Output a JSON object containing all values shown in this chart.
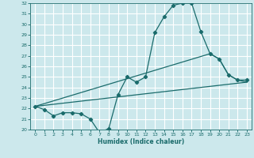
{
  "xlabel": "Humidex (Indice chaleur)",
  "bg_color": "#cce8ec",
  "grid_color": "#ffffff",
  "line_color": "#1a6b6b",
  "xlim": [
    -0.5,
    23.5
  ],
  "ylim": [
    20,
    32
  ],
  "xticks": [
    0,
    1,
    2,
    3,
    4,
    5,
    6,
    7,
    8,
    9,
    10,
    11,
    12,
    13,
    14,
    15,
    16,
    17,
    18,
    19,
    20,
    21,
    22,
    23
  ],
  "yticks": [
    20,
    21,
    22,
    23,
    24,
    25,
    26,
    27,
    28,
    29,
    30,
    31,
    32
  ],
  "curve1_x": [
    0,
    1,
    2,
    3,
    4,
    5,
    6,
    7,
    8,
    9,
    10,
    11,
    12,
    13,
    14,
    15,
    16,
    17,
    18,
    19,
    20,
    21,
    22,
    23
  ],
  "curve1_y": [
    22.2,
    21.9,
    21.3,
    21.6,
    21.6,
    21.5,
    21.0,
    19.7,
    20.1,
    23.3,
    25.0,
    24.5,
    25.0,
    29.2,
    30.7,
    31.8,
    32.0,
    32.0,
    29.3,
    27.2,
    26.7,
    25.2,
    24.7,
    24.7
  ],
  "curve2_x": [
    0,
    19,
    20,
    21,
    22,
    23
  ],
  "curve2_y": [
    22.2,
    27.2,
    26.7,
    25.2,
    24.7,
    24.5
  ],
  "curve3_x": [
    0,
    22,
    23
  ],
  "curve3_y": [
    22.2,
    24.4,
    24.5
  ],
  "figwidth": 3.2,
  "figheight": 2.0,
  "dpi": 100
}
